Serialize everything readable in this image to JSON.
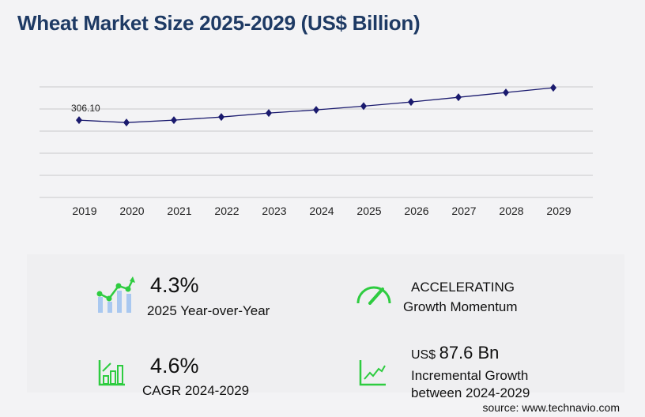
{
  "title": "Wheat Market Size 2025-2029 (US$ Billion)",
  "chart_data": {
    "type": "line",
    "title": "Wheat Market Size 2025-2029 (US$ Billion)",
    "categories": [
      "2019",
      "2020",
      "2021",
      "2022",
      "2023",
      "2024",
      "2025",
      "2026",
      "2027",
      "2028",
      "2029"
    ],
    "values": [
      306.1,
      296.7,
      306.1,
      318.6,
      334.3,
      346.8,
      361.7,
      378.1,
      396.8,
      415.6,
      434.4
    ],
    "data_labels": [
      {
        "category": "2019",
        "text": "306.10"
      }
    ],
    "ylim": [
      0,
      438
    ],
    "grid": true,
    "series_color": "#1a1a6e",
    "xlabel": "",
    "ylabel": ""
  },
  "stats": {
    "yoy_value": "4.3%",
    "yoy_label": "2025 Year-over-Year",
    "momentum_value": "ACCELERATING",
    "momentum_label": "Growth Momentum",
    "cagr_value": "4.6%",
    "cagr_label": "CAGR 2024-2029",
    "incr_prefix": "US$",
    "incr_value": "87.6 Bn",
    "incr_label_1": "Incremental Growth",
    "incr_label_2": "between 2024-2029"
  },
  "source": "source: www.technavio.com",
  "colors": {
    "accent": "#2ecc40",
    "title": "#1e3a64",
    "bar": "#a9c8f0"
  }
}
